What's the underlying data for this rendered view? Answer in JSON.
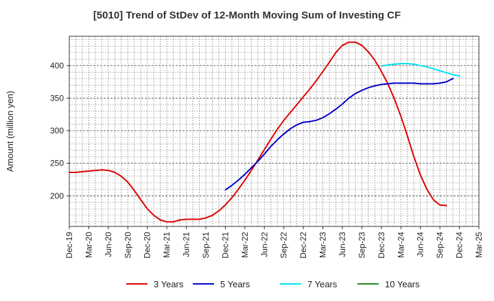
{
  "chart_data": {
    "type": "line",
    "title": "[5010]  Trend of StDev of 12-Month Moving Sum of Investing CF",
    "xlabel": "",
    "ylabel": "Amount (million yen)",
    "x_ticks": [
      "Dec-19",
      "Mar-20",
      "Jun-20",
      "Sep-20",
      "Dec-20",
      "Mar-21",
      "Jun-21",
      "Sep-21",
      "Dec-21",
      "Mar-22",
      "Jun-22",
      "Sep-22",
      "Dec-22",
      "Mar-23",
      "Jun-23",
      "Sep-23",
      "Dec-23",
      "Mar-24",
      "Jun-24",
      "Sep-24",
      "Dec-24",
      "Mar-25"
    ],
    "y_ticks": [
      200,
      250,
      300,
      350,
      400
    ],
    "ylim": [
      153,
      445
    ],
    "grid": true,
    "legend_position": "bottom",
    "series": [
      {
        "name": "3 Years",
        "color": "#dd0000",
        "values": [
          236,
          236,
          237,
          238,
          239,
          240,
          239,
          236,
          230,
          221,
          208,
          194,
          180,
          170,
          163,
          160,
          160,
          163,
          164,
          164,
          164,
          166,
          170,
          177,
          186,
          197,
          210,
          224,
          239,
          255,
          271,
          287,
          302,
          316,
          328,
          340,
          352,
          364,
          377,
          391,
          405,
          420,
          431,
          436,
          436,
          431,
          421,
          408,
          391,
          372,
          349,
          322,
          292,
          260,
          232,
          210,
          194,
          186,
          185
        ],
        "x_start_index": 0
      },
      {
        "name": "5 Years",
        "color": "#0000cc",
        "values": [
          209,
          216,
          224,
          233,
          243,
          253,
          264,
          276,
          286,
          295,
          303,
          309,
          313,
          314,
          316,
          320,
          326,
          333,
          341,
          350,
          357,
          362,
          366,
          369,
          371,
          372,
          373,
          373,
          373,
          373,
          372,
          372,
          372,
          373,
          375,
          380
        ],
        "x_start_index": 24
      },
      {
        "name": "7 Years",
        "color": "#00e5ee",
        "values": [
          399,
          401,
          402,
          403,
          403,
          402,
          400,
          398,
          395,
          392,
          389,
          386,
          384
        ],
        "x_start_index": 48
      },
      {
        "name": "10 Years",
        "color": "#228b22",
        "values": [],
        "x_start_index": 0
      }
    ]
  }
}
